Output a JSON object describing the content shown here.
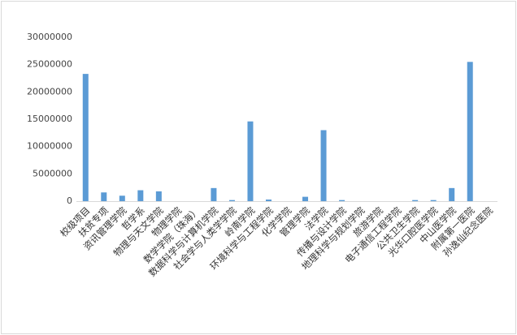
{
  "chart_data": {
    "type": "bar",
    "categories": [
      "校级项目",
      "扶贫专项",
      "资讯管理学院",
      "哲学系",
      "物理与天文学院",
      "物理学院",
      "数学学院（珠海）",
      "数据科学与计算机学院",
      "社会学与人类学学院",
      "岭南学院",
      "环境科学与工程学院",
      "化学学院",
      "管理学院",
      "法学院",
      "传播与设计学院",
      "地理科学与规划学院",
      "旅游学院",
      "电子通信工程学院",
      "公共卫生学院",
      "光华口腔医学院",
      "中山医学院",
      "附属第一医院",
      "孙逸仙纪念医院"
    ],
    "values": [
      23300000,
      1600000,
      1000000,
      2000000,
      1800000,
      0,
      0,
      2400000,
      200000,
      14600000,
      300000,
      0,
      800000,
      13000000,
      200000,
      0,
      0,
      0,
      200000,
      200000,
      2400000,
      25500000,
      0
    ],
    "color": "#5b9bd5",
    "ylim": [
      0,
      30000000
    ],
    "yticks": [
      0,
      5000000,
      10000000,
      15000000,
      20000000,
      25000000,
      30000000
    ],
    "grid": false
  }
}
